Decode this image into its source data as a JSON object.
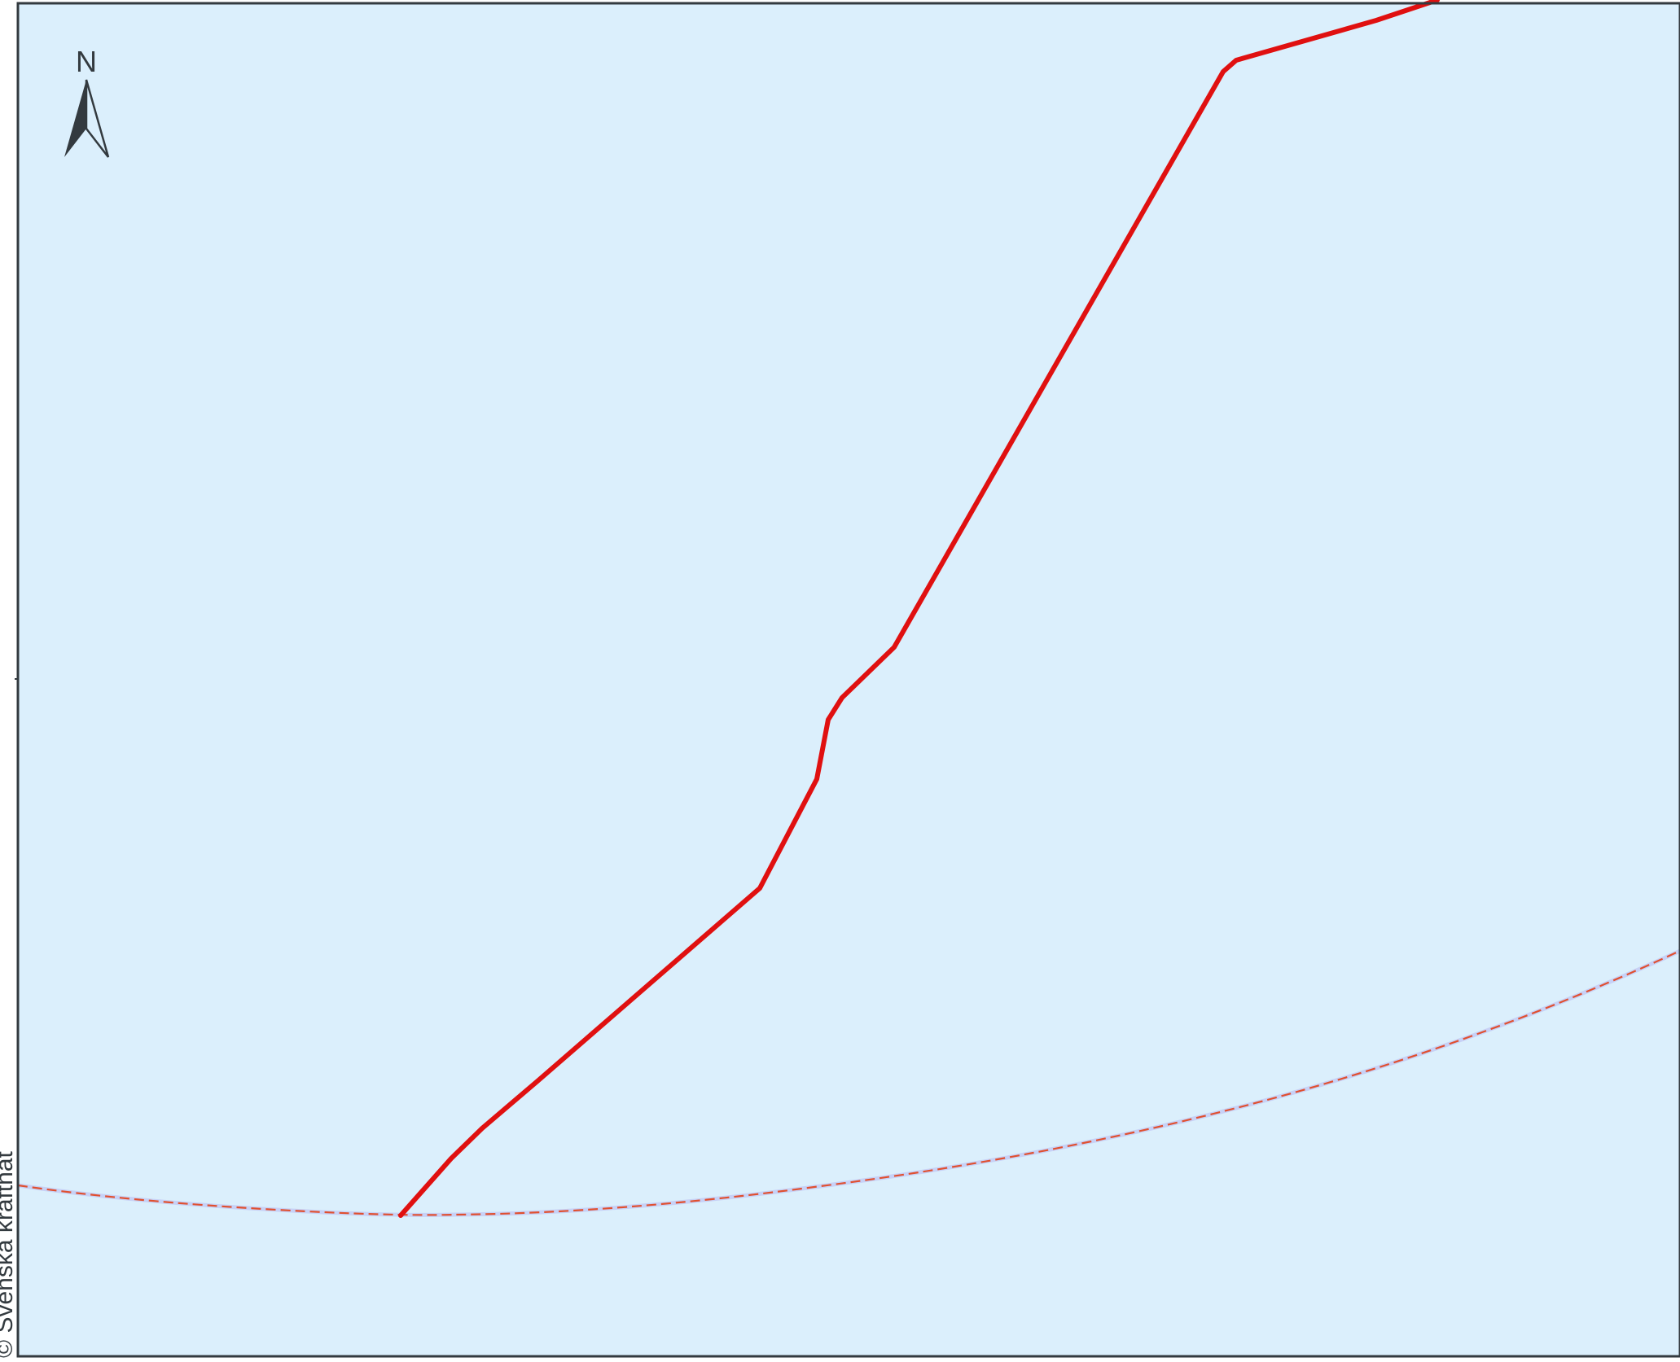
{
  "map": {
    "attribution": "© Svenska kraftnät",
    "north_arrow_label": "N",
    "colors": {
      "water": "#dbeffc",
      "frame": "#333a3f",
      "power_line": "#e01010",
      "boundary_line": "#e05030",
      "boundary_glow": "#b7b8f0",
      "north_arrow": "#333a3f"
    },
    "layers": [
      {
        "name": "power-line",
        "style": "solid"
      },
      {
        "name": "boundary-line",
        "style": "dashed"
      }
    ]
  }
}
